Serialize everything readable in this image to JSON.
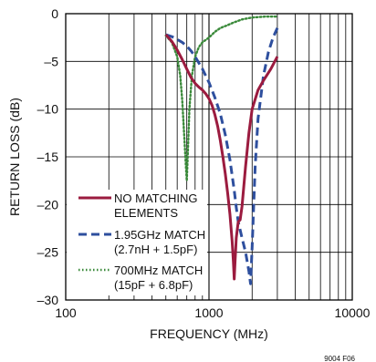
{
  "chart_data": {
    "type": "line",
    "xlabel": "FREQUENCY (MHz)",
    "ylabel": "RETURN LOSS (dB)",
    "xscale": "log",
    "xlim": [
      100,
      10000
    ],
    "ylim": [
      -30,
      0
    ],
    "grid": true,
    "legend_placement": "bottom-left",
    "x_ticks": [
      {
        "value": 100,
        "label": "100"
      },
      {
        "value": 1000,
        "label": "1000"
      },
      {
        "value": 10000,
        "label": "10000"
      }
    ],
    "y_ticks": [
      {
        "value": 0,
        "label": "0"
      },
      {
        "value": -5,
        "label": "–5"
      },
      {
        "value": -10,
        "label": "–10"
      },
      {
        "value": -15,
        "label": "–15"
      },
      {
        "value": -20,
        "label": "–20"
      },
      {
        "value": -25,
        "label": "–25"
      },
      {
        "value": -30,
        "label": "–30"
      }
    ],
    "series": [
      {
        "name": "NO MATCHING ELEMENTS",
        "legend_lines": [
          "NO MATCHING",
          "ELEMENTS"
        ],
        "color": "#9b1b3f",
        "style": "solid",
        "points": [
          [
            500,
            -2.2
          ],
          [
            550,
            -2.9
          ],
          [
            600,
            -3.8
          ],
          [
            650,
            -4.8
          ],
          [
            700,
            -5.8
          ],
          [
            750,
            -6.7
          ],
          [
            800,
            -7.3
          ],
          [
            850,
            -7.7
          ],
          [
            900,
            -8.0
          ],
          [
            950,
            -8.4
          ],
          [
            1000,
            -8.9
          ],
          [
            1050,
            -9.6
          ],
          [
            1100,
            -10.6
          ],
          [
            1150,
            -11.8
          ],
          [
            1200,
            -13.3
          ],
          [
            1250,
            -15.0
          ],
          [
            1300,
            -16.8
          ],
          [
            1350,
            -18.8
          ],
          [
            1400,
            -21.0
          ],
          [
            1450,
            -23.8
          ],
          [
            1480,
            -26.0
          ],
          [
            1500,
            -27.8
          ],
          [
            1520,
            -26.0
          ],
          [
            1550,
            -23.5
          ],
          [
            1600,
            -21.8
          ],
          [
            1650,
            -21.6
          ],
          [
            1700,
            -20.2
          ],
          [
            1800,
            -16.0
          ],
          [
            1900,
            -12.5
          ],
          [
            2000,
            -10.0
          ],
          [
            2200,
            -8.0
          ],
          [
            2400,
            -7.0
          ],
          [
            2700,
            -5.8
          ],
          [
            3000,
            -4.5
          ]
        ]
      },
      {
        "name": "1.95GHz MATCH (2.7nH + 1.5pF)",
        "legend_lines": [
          "1.95GHz MATCH",
          "(2.7nH + 1.5pF)"
        ],
        "color": "#2e4f9e",
        "style": "dashed",
        "points": [
          [
            500,
            -2.2
          ],
          [
            550,
            -2.4
          ],
          [
            600,
            -2.7
          ],
          [
            650,
            -3.0
          ],
          [
            700,
            -3.4
          ],
          [
            750,
            -3.9
          ],
          [
            800,
            -4.5
          ],
          [
            900,
            -5.8
          ],
          [
            1000,
            -7.2
          ],
          [
            1100,
            -8.8
          ],
          [
            1200,
            -10.5
          ],
          [
            1300,
            -12.7
          ],
          [
            1400,
            -15.3
          ],
          [
            1500,
            -18.5
          ],
          [
            1550,
            -20.3
          ],
          [
            1600,
            -21.8
          ],
          [
            1700,
            -23.5
          ],
          [
            1800,
            -25.0
          ],
          [
            1900,
            -27.0
          ],
          [
            1950,
            -28.3
          ],
          [
            2000,
            -24.5
          ],
          [
            2100,
            -16.0
          ],
          [
            2200,
            -11.0
          ],
          [
            2400,
            -6.5
          ],
          [
            2600,
            -4.0
          ],
          [
            2800,
            -2.5
          ],
          [
            3000,
            -1.5
          ]
        ]
      },
      {
        "name": "700MHz MATCH (15pF + 6.8pF)",
        "legend_lines": [
          "700MHz MATCH",
          "(15pF + 6.8pF)"
        ],
        "color": "#3a8a3a",
        "style": "dotted",
        "points": [
          [
            500,
            -2.3
          ],
          [
            550,
            -3.0
          ],
          [
            600,
            -4.5
          ],
          [
            630,
            -6.5
          ],
          [
            650,
            -9.0
          ],
          [
            670,
            -12.5
          ],
          [
            690,
            -16.0
          ],
          [
            700,
            -17.5
          ],
          [
            710,
            -15.0
          ],
          [
            730,
            -10.0
          ],
          [
            760,
            -6.5
          ],
          [
            800,
            -4.5
          ],
          [
            850,
            -3.5
          ],
          [
            900,
            -3.0
          ],
          [
            1000,
            -2.5
          ],
          [
            1100,
            -1.9
          ],
          [
            1200,
            -1.5
          ],
          [
            1350,
            -1.2
          ],
          [
            1500,
            -0.9
          ],
          [
            1700,
            -0.6
          ],
          [
            2000,
            -0.4
          ],
          [
            2500,
            -0.3
          ],
          [
            3000,
            -0.3
          ]
        ]
      }
    ]
  },
  "figure_code": "9004 F06"
}
